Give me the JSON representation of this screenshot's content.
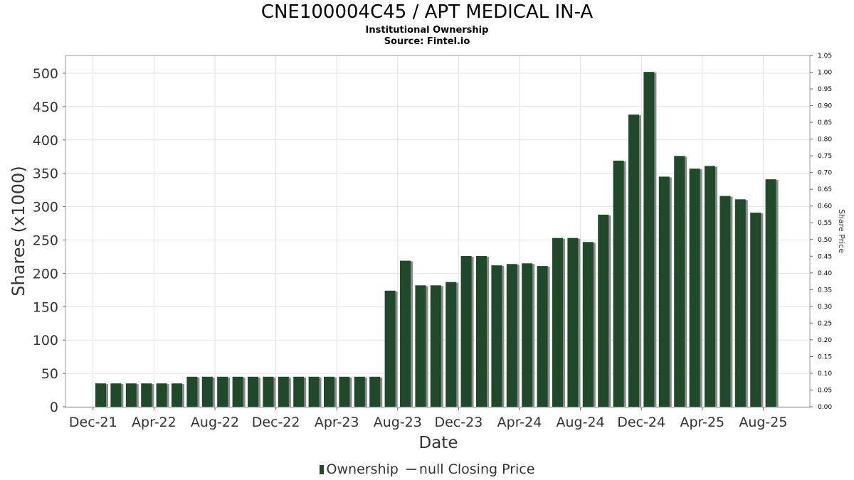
{
  "chart_data": {
    "type": "bar",
    "title": "CNE100004C45 / APT MEDICAL IN-A",
    "subtitle": "Institutional Ownership",
    "source": "Source: Fintel.io",
    "xlabel": "Date",
    "ylabel": "Shares (x1000)",
    "y2label": "Share Price",
    "ylim": [
      0,
      525
    ],
    "y2lim": [
      0,
      1.05
    ],
    "yticks": [
      0,
      50,
      100,
      150,
      200,
      250,
      300,
      350,
      400,
      450,
      500
    ],
    "y2ticks": [
      "0.00",
      "0.05",
      "0.10",
      "0.15",
      "0.20",
      "0.25",
      "0.30",
      "0.35",
      "0.40",
      "0.45",
      "0.50",
      "0.55",
      "0.60",
      "0.65",
      "0.70",
      "0.75",
      "0.80",
      "0.85",
      "0.90",
      "0.95",
      "1.00",
      "1.05"
    ],
    "xticks": [
      "Dec-21",
      "Apr-22",
      "Aug-22",
      "Dec-22",
      "Apr-23",
      "Aug-23",
      "Dec-23",
      "Apr-24",
      "Aug-24",
      "Dec-24",
      "Apr-25",
      "Aug-25"
    ],
    "grid": true,
    "legend_position": "bottom",
    "series": [
      {
        "name": "Ownership",
        "type": "bar",
        "color": "#1e4a2a",
        "x": [
          "2022-01",
          "2022-02",
          "2022-03",
          "2022-04",
          "2022-05",
          "2022-06",
          "2022-07",
          "2022-08",
          "2022-09",
          "2022-10",
          "2022-11",
          "2022-12",
          "2023-01",
          "2023-02",
          "2023-03",
          "2023-04",
          "2023-05",
          "2023-06",
          "2023-07",
          "2023-08",
          "2023-09",
          "2023-10",
          "2023-11",
          "2023-12",
          "2024-01",
          "2024-02",
          "2024-03",
          "2024-04",
          "2024-05",
          "2024-06",
          "2024-07",
          "2024-08",
          "2024-09",
          "2024-10",
          "2024-11",
          "2024-12",
          "2025-01",
          "2025-02",
          "2025-03",
          "2025-04",
          "2025-05",
          "2025-06",
          "2025-07",
          "2025-08",
          "2025-09"
        ],
        "values": [
          35,
          35,
          35,
          35,
          35,
          35,
          45,
          45,
          45,
          45,
          45,
          45,
          45,
          45,
          45,
          45,
          45,
          45,
          45,
          174,
          219,
          182,
          182,
          187,
          226,
          226,
          212,
          214,
          215,
          211,
          253,
          253,
          247,
          288,
          369,
          438,
          502,
          345,
          376,
          357,
          361,
          316,
          311,
          291,
          341
        ]
      },
      {
        "name": "null Closing Price",
        "type": "line",
        "color": "#555555",
        "values": []
      }
    ]
  }
}
